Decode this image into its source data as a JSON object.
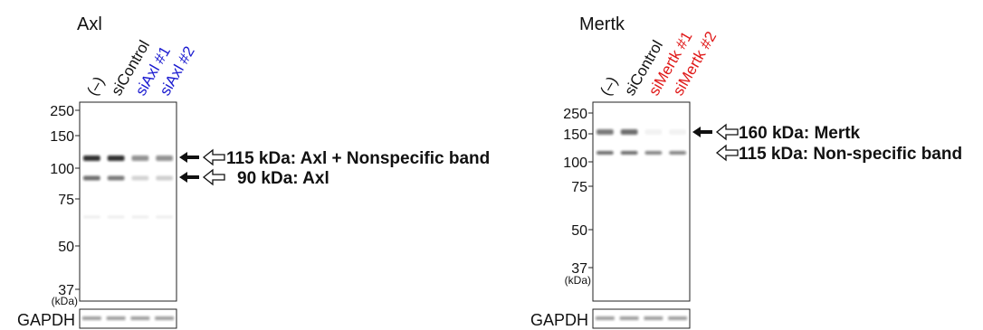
{
  "panels": [
    {
      "title": "Axl",
      "lanes": [
        "(–)",
        "siControl",
        "siAxl #1",
        "siAxl #2"
      ],
      "markers": [
        "250",
        "150",
        "100",
        "75",
        "50",
        "37"
      ],
      "unit": "(kDa)",
      "annotations": [
        "115 kDa: Axl + Nonspecific band",
        "90 kDa: Axl"
      ],
      "loading_control": "GAPDH"
    },
    {
      "title": "Mertk",
      "lanes": [
        "(–)",
        "siControl",
        "siMertk #1",
        "siMertk #2"
      ],
      "markers": [
        "250",
        "150",
        "100",
        "75",
        "50",
        "37"
      ],
      "unit": "(kDa)",
      "annotations": [
        "160 kDa: Mertk",
        "115 kDa: Non-specific band"
      ],
      "loading_control": "GAPDH"
    }
  ]
}
